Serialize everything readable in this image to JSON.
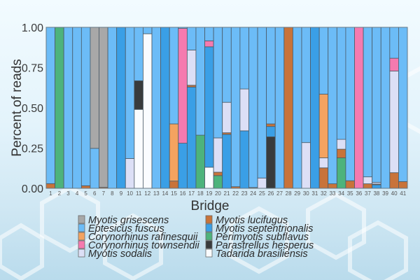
{
  "chart_data": {
    "type": "bar",
    "stacked": true,
    "title": "",
    "xlabel": "Bridge",
    "ylabel": "Percent of reads",
    "ylim": [
      0,
      1
    ],
    "yticks": [
      "0.00",
      "0.25",
      "0.50",
      "0.75",
      "1.00"
    ],
    "ytick_values": [
      0,
      0.25,
      0.5,
      0.75,
      1.0
    ],
    "categories": [
      "1",
      "2",
      "3",
      "4",
      "5",
      "6",
      "7",
      "8",
      "9",
      "10",
      "11",
      "12",
      "13",
      "14",
      "15",
      "16",
      "17",
      "18",
      "19",
      "20",
      "21",
      "22",
      "23",
      "24",
      "25",
      "26",
      "27",
      "28",
      "29",
      "30",
      "31",
      "32",
      "33",
      "34",
      "35",
      "36",
      "37",
      "38",
      "39",
      "40",
      "41"
    ],
    "legend_position": "bottom-center",
    "stack_order_bottom_to_top": [
      "Tadarida brasiliensis",
      "Parastrellus hesperus",
      "Perimyotis subflavus",
      "Myotis septentrionalis",
      "Myotis lucifugus",
      "Myotis sodalis",
      "Corynorhinus townsendii",
      "Corynorhinus rafinesquii",
      "Eptesicus fuscus",
      "Myotis grisescens"
    ],
    "series": [
      {
        "name": "Myotis grisescens",
        "color": "#a8a8a8",
        "values": [
          0,
          0,
          0,
          0,
          0,
          0.752,
          0.994,
          0,
          0,
          0,
          0,
          0,
          0,
          0,
          0,
          0,
          0,
          0,
          0,
          0,
          0,
          0,
          0,
          0,
          0,
          0,
          0,
          0,
          0,
          0,
          0,
          0,
          0,
          0,
          0,
          0,
          0,
          0,
          0,
          0,
          0
        ]
      },
      {
        "name": "Eptesicus fuscus",
        "color": "#6cbcf7",
        "values": [
          0.971,
          0,
          1,
          1,
          0.984,
          0.248,
          0,
          1,
          0,
          0.815,
          0.332,
          0.04,
          1,
          0,
          0.6,
          0.007,
          0.141,
          0.67,
          0.084,
          0.687,
          0.466,
          0.99,
          0.383,
          0.995,
          0.936,
          0.6,
          1,
          0,
          1,
          0.716,
          0,
          0.415,
          0.972,
          0.696,
          0.953,
          0,
          0.929,
          0.963,
          1,
          0.192,
          0.958
        ]
      },
      {
        "name": "Corynorhinus rafinesquii",
        "color": "#f4a360",
        "values": [
          0,
          0,
          0,
          0,
          0,
          0,
          0,
          0,
          0,
          0,
          0,
          0,
          0,
          0,
          0.355,
          0,
          0,
          0,
          0,
          0,
          0,
          0,
          0,
          0,
          0,
          0,
          0,
          0,
          0,
          0,
          0,
          0.396,
          0,
          0,
          0,
          0,
          0,
          0,
          0,
          0,
          0
        ]
      },
      {
        "name": "Corynorhinus townsendii",
        "color": "#f57aaf",
        "values": [
          0,
          0,
          0,
          0,
          0,
          0,
          0,
          0,
          0,
          0,
          0,
          0,
          0,
          0,
          0,
          0.713,
          0,
          0,
          0.037,
          0,
          0,
          0,
          0,
          0,
          0,
          0,
          0,
          0,
          0,
          0,
          0,
          0,
          0,
          0,
          0,
          1,
          0,
          0,
          0,
          0.08,
          0
        ]
      },
      {
        "name": "Myotis sodalis",
        "color": "#dcdff6",
        "values": [
          0,
          0,
          0,
          0,
          0,
          0,
          0,
          0,
          0,
          0.185,
          0,
          0,
          0,
          0,
          0,
          0,
          0.219,
          0,
          0,
          0.213,
          0.189,
          0,
          0.26,
          0,
          0.064,
          0,
          0,
          0,
          0,
          0.284,
          0,
          0.062,
          0,
          0.061,
          0,
          0,
          0.043,
          0.01,
          0,
          0.631,
          0
        ]
      },
      {
        "name": "Myotis lucifugus",
        "color": "#c8733a",
        "values": [
          0.029,
          0,
          0,
          0,
          0.016,
          0,
          0.006,
          0,
          0,
          0,
          0,
          0,
          0,
          0,
          0.045,
          0,
          0.011,
          0,
          0,
          0.021,
          0.01,
          0.01,
          0,
          0.005,
          0,
          0.016,
          0,
          1,
          0,
          0,
          0,
          0.127,
          0.028,
          0.054,
          0.047,
          0,
          0.028,
          0.005,
          0,
          0.097,
          0.042
        ]
      },
      {
        "name": "Myotis septentrionalis",
        "color": "#3a9fe6",
        "values": [
          0,
          0,
          0,
          0,
          0,
          0,
          0,
          0,
          1,
          0,
          0,
          0,
          0,
          1,
          0,
          0.28,
          0.629,
          0,
          0.748,
          0,
          0.335,
          0,
          0.357,
          0,
          0,
          0.064,
          0,
          0,
          0,
          0,
          1,
          0,
          0,
          0,
          0,
          0,
          0,
          0.022,
          0,
          0,
          0
        ]
      },
      {
        "name": "Perimyotis subflavus",
        "color": "#4db37c",
        "values": [
          0,
          1,
          0,
          0,
          0,
          0,
          0,
          0,
          0,
          0,
          0,
          0,
          0,
          0,
          0,
          0,
          0,
          0.33,
          0,
          0.079,
          0,
          0,
          0,
          0,
          0,
          0,
          0,
          0,
          0,
          0,
          0,
          0,
          0,
          0.189,
          0,
          0,
          0,
          0,
          0,
          0,
          0
        ]
      },
      {
        "name": "Parastrellus hesperus",
        "color": "#383b3d",
        "values": [
          0,
          0,
          0,
          0,
          0,
          0,
          0,
          0,
          0,
          0,
          0.178,
          0,
          0,
          0,
          0,
          0,
          0,
          0,
          0,
          0,
          0,
          0,
          0,
          0,
          0,
          0.32,
          0,
          0,
          0,
          0,
          0,
          0,
          0,
          0,
          0,
          0,
          0,
          0,
          0,
          0,
          0
        ]
      },
      {
        "name": "Tadarida brasiliensis",
        "color": "#fafcff",
        "values": [
          0,
          0,
          0,
          0,
          0,
          0,
          0,
          0,
          0,
          0,
          0.49,
          0.96,
          0,
          0,
          0,
          0,
          0,
          0,
          0.131,
          0,
          0,
          0,
          0,
          0,
          0,
          0,
          0,
          0,
          0,
          0,
          0,
          0,
          0,
          0,
          0,
          0,
          0,
          0,
          0,
          0,
          0
        ]
      }
    ]
  }
}
